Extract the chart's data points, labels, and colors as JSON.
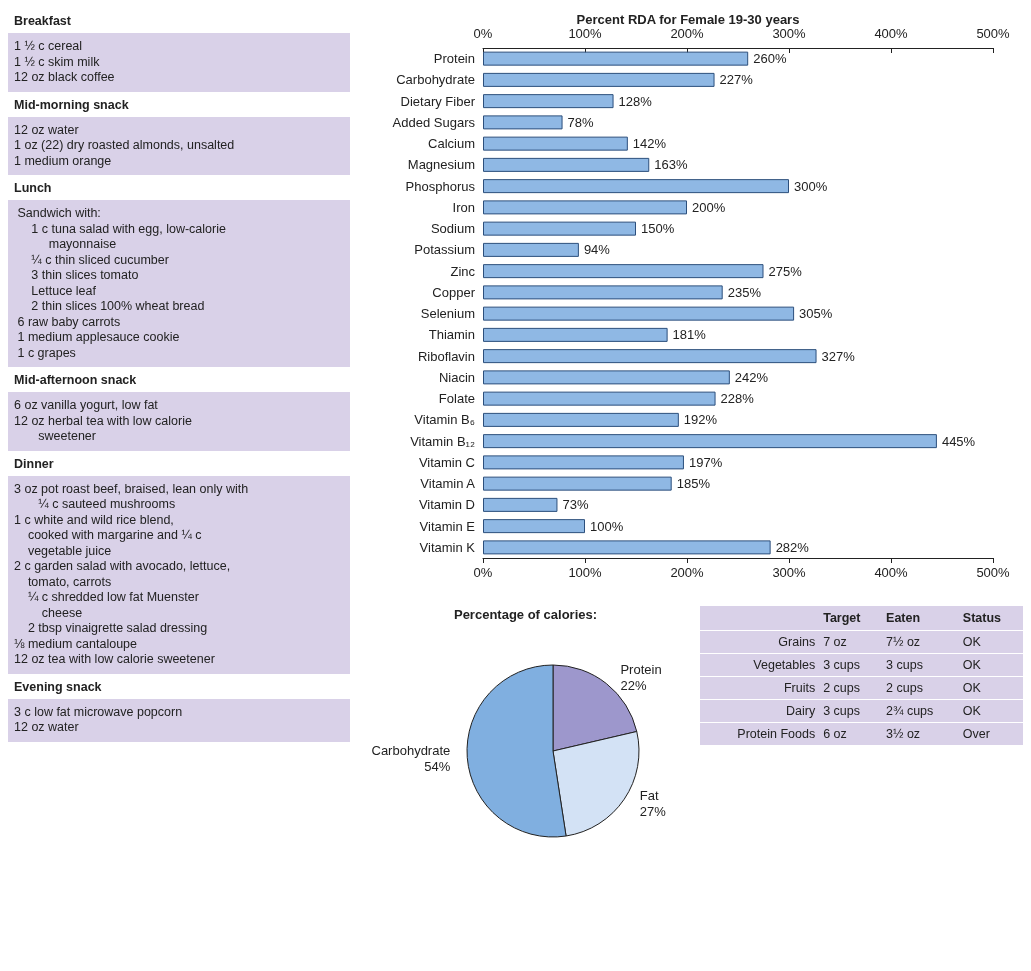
{
  "chart_data": [
    {
      "type": "other",
      "title": "Breakfast",
      "annotations": [
        "1 ½ c cereal",
        "1 ½ c skim milk",
        "12 oz black coffee"
      ]
    },
    {
      "type": "other",
      "title": "Mid-morning snack",
      "annotations": [
        "12 oz water",
        "1 oz (22) dry roasted almonds, unsalted",
        "1 medium orange"
      ]
    },
    {
      "type": "other",
      "title": "Lunch",
      "annotations": [
        " Sandwich with:",
        "     1 c tuna salad with egg, low-calorie",
        "          mayonnaise",
        "     ¼ c thin sliced cucumber",
        "     3 thin slices tomato",
        "     Lettuce leaf",
        "     2 thin slices 100% wheat bread",
        " 6 raw baby carrots",
        " 1 medium applesauce cookie",
        " 1 c grapes"
      ]
    },
    {
      "type": "other",
      "title": "Mid-afternoon snack",
      "annotations": [
        "6 oz vanilla yogurt, low fat",
        "12 oz herbal tea with low calorie",
        "       sweetener"
      ]
    },
    {
      "type": "other",
      "title": "Dinner",
      "annotations": [
        "3 oz pot roast beef, braised, lean only with",
        "       ¼ c sauteed mushrooms",
        "1 c white and wild rice blend,",
        "    cooked with margarine and ¼ c",
        "    vegetable juice",
        "2 c garden salad with avocado, lettuce,",
        "    tomato, carrots",
        "    ¼ c shredded low fat Muenster",
        "        cheese",
        "    2 tbsp vinaigrette salad dressing",
        "⅛ medium cantaloupe",
        "12 oz tea with low calorie sweetener"
      ]
    },
    {
      "type": "other",
      "title": "Evening snack",
      "annotations": [
        "3 c low fat microwave popcorn",
        "12 oz water"
      ]
    },
    {
      "type": "bar",
      "orientation": "horizontal",
      "title": "Percent RDA for Female 19-30 years",
      "categories": [
        "Protein",
        "Carbohydrate",
        "Dietary Fiber",
        "Added Sugars",
        "Calcium",
        "Magnesium",
        "Phosphorus",
        "Iron",
        "Sodium",
        "Potassium",
        "Zinc",
        "Copper",
        "Selenium",
        "Thiamin",
        "Riboflavin",
        "Niacin",
        "Folate",
        "Vitamin B₆",
        "Vitamin B₁₂",
        "Vitamin C",
        "Vitamin A",
        "Vitamin D",
        "Vitamin E",
        "Vitamin K"
      ],
      "values": [
        260,
        227,
        128,
        78,
        142,
        163,
        300,
        200,
        150,
        94,
        275,
        235,
        305,
        181,
        327,
        242,
        228,
        192,
        445,
        197,
        185,
        73,
        100,
        282
      ],
      "value_labels": [
        "260%",
        "227%",
        "128%",
        "78%",
        "142%",
        "163%",
        "300%",
        "200%",
        "150%",
        "94%",
        "275%",
        "235%",
        "305%",
        "181%",
        "327%",
        "242%",
        "228%",
        "192%",
        "445%",
        "197%",
        "185%",
        "73%",
        "100%",
        "282%"
      ],
      "color": "#8fb8e4",
      "xlim": [
        0,
        500
      ],
      "xticks": [
        {
          "value": 0,
          "label": "0%"
        },
        {
          "value": 100,
          "label": "100%"
        },
        {
          "value": 200,
          "label": "200%"
        },
        {
          "value": 300,
          "label": "300%"
        },
        {
          "value": 400,
          "label": "400%"
        },
        {
          "value": 500,
          "label": "500%"
        }
      ],
      "x2lim": [
        0,
        500
      ],
      "x2ticks": [
        {
          "value": 0,
          "label": "0%"
        },
        {
          "value": 100,
          "label": "100%"
        },
        {
          "value": 200,
          "label": "200%"
        },
        {
          "value": 300,
          "label": "300%"
        },
        {
          "value": 400,
          "label": "400%"
        },
        {
          "value": 500,
          "label": "500%"
        }
      ],
      "grid": false,
      "legend": false
    },
    {
      "type": "pie",
      "title": "Percentage of calories:",
      "categories": [
        "Protein",
        "Fat",
        "Carbohydrate"
      ],
      "values": [
        22,
        27,
        54
      ],
      "value_labels": [
        "22%",
        "27%",
        "54%"
      ],
      "colors": [
        "#9d97cc",
        "#d3e2f5",
        "#80afe0"
      ],
      "legend": false
    },
    {
      "type": "other",
      "categories": [
        "Target",
        "Eaten",
        "Status"
      ],
      "y_categories": [
        "Grains",
        "Vegetables",
        "Fruits",
        "Dairy",
        "Protein Foods"
      ],
      "cell_labels": [
        [
          "7 oz",
          "7½ oz",
          "OK"
        ],
        [
          "3 cups",
          "3 cups",
          "OK"
        ],
        [
          "2 cups",
          "2 cups",
          "OK"
        ],
        [
          "3 cups",
          "2¾ cups",
          "OK"
        ],
        [
          "6 oz",
          "3½ oz",
          "Over"
        ]
      ]
    }
  ]
}
